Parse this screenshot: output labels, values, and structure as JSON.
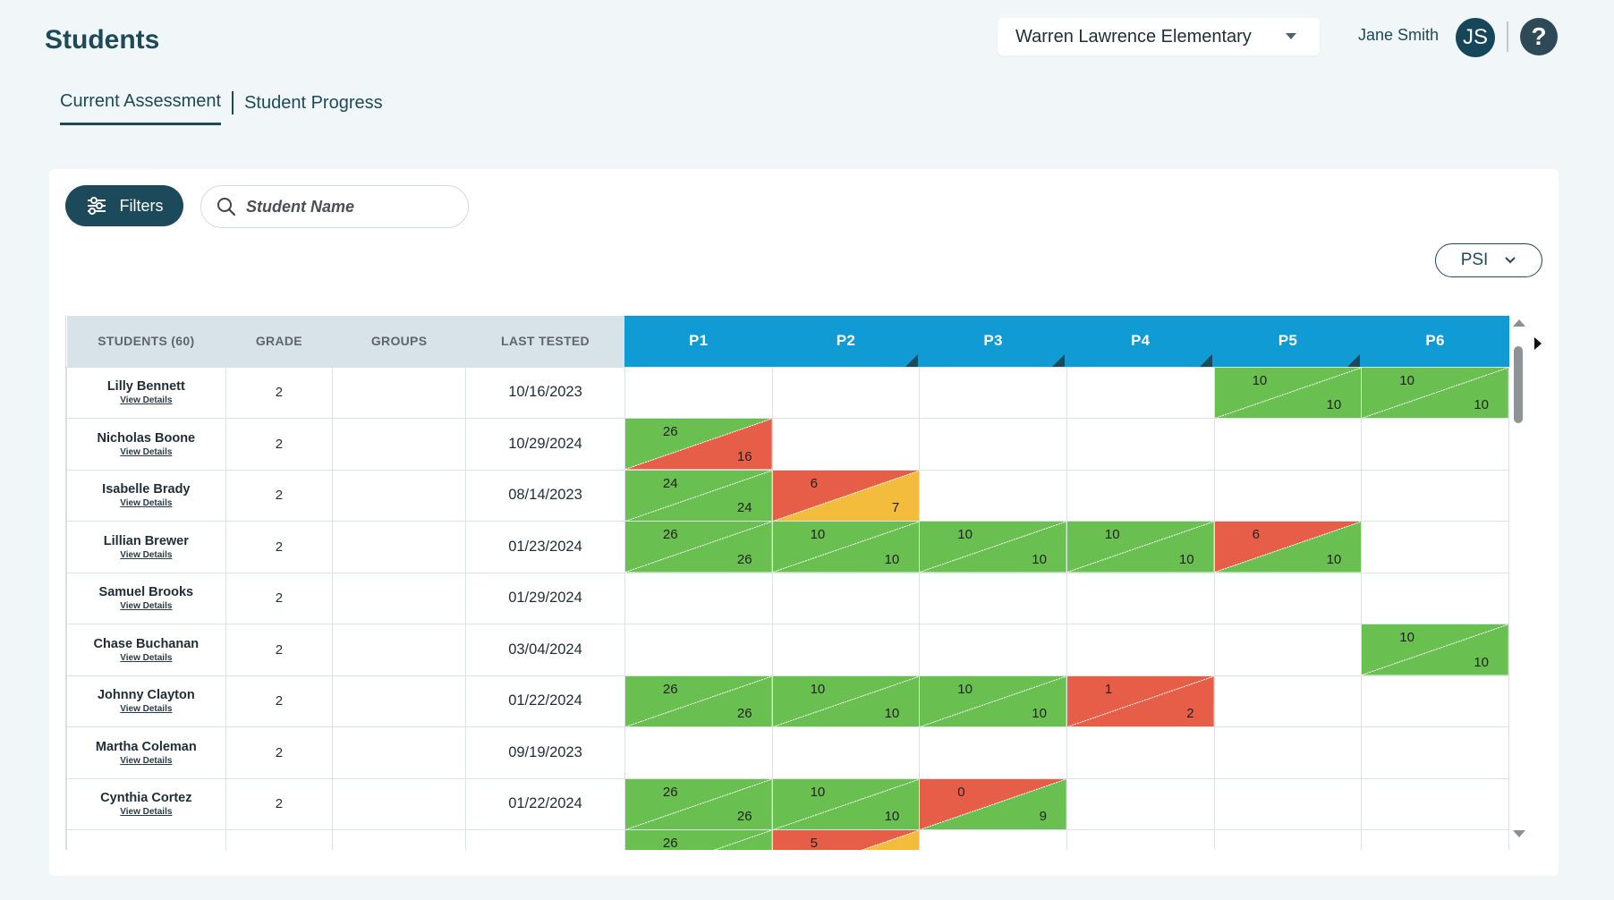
{
  "header": {
    "title": "Students",
    "school": "Warren Lawrence Elementary",
    "user_name": "Jane Smith",
    "user_initials": "JS",
    "help_icon": "?"
  },
  "tabs": [
    {
      "label": "Current Assessment",
      "active": true
    },
    {
      "label": "Student Progress",
      "active": false
    }
  ],
  "toolbar": {
    "filters_label": "Filters",
    "search_placeholder": "Student Name",
    "measure_select": "PSI"
  },
  "colors": {
    "green": "#69bf4f",
    "red": "#e65e47",
    "yellow": "#f3bc3d",
    "header_blue": "#109bd5",
    "dark_teal": "#1c4a5b"
  },
  "table": {
    "columns": [
      "STUDENTS (60)",
      "GRADE",
      "GROUPS",
      "LAST TESTED"
    ],
    "periods": [
      "P1",
      "P2",
      "P3",
      "P4",
      "P5",
      "P6"
    ],
    "view_details_label": "View Details",
    "rows": [
      {
        "name": "Lilly Bennett",
        "grade": "2",
        "groups": "",
        "last_tested": "10/16/2023",
        "scores": [
          null,
          null,
          null,
          null,
          {
            "top": "10",
            "bottom": "10",
            "upper": "green",
            "lower": "green"
          },
          {
            "top": "10",
            "bottom": "10",
            "upper": "green",
            "lower": "green"
          }
        ]
      },
      {
        "name": "Nicholas Boone",
        "grade": "2",
        "groups": "",
        "last_tested": "10/29/2024",
        "scores": [
          {
            "top": "26",
            "bottom": "16",
            "upper": "green",
            "lower": "red"
          },
          null,
          null,
          null,
          null,
          null
        ]
      },
      {
        "name": "Isabelle Brady",
        "grade": "2",
        "groups": "",
        "last_tested": "08/14/2023",
        "scores": [
          {
            "top": "24",
            "bottom": "24",
            "upper": "green",
            "lower": "green"
          },
          {
            "top": "6",
            "bottom": "7",
            "upper": "red",
            "lower": "yellow"
          },
          null,
          null,
          null,
          null
        ]
      },
      {
        "name": "Lillian Brewer",
        "grade": "2",
        "groups": "",
        "last_tested": "01/23/2024",
        "scores": [
          {
            "top": "26",
            "bottom": "26",
            "upper": "green",
            "lower": "green"
          },
          {
            "top": "10",
            "bottom": "10",
            "upper": "green",
            "lower": "green"
          },
          {
            "top": "10",
            "bottom": "10",
            "upper": "green",
            "lower": "green"
          },
          {
            "top": "10",
            "bottom": "10",
            "upper": "green",
            "lower": "green"
          },
          {
            "top": "6",
            "bottom": "10",
            "upper": "red",
            "lower": "green"
          },
          null
        ]
      },
      {
        "name": "Samuel Brooks",
        "grade": "2",
        "groups": "",
        "last_tested": "01/29/2024",
        "scores": [
          null,
          null,
          null,
          null,
          null,
          null
        ]
      },
      {
        "name": "Chase Buchanan",
        "grade": "2",
        "groups": "",
        "last_tested": "03/04/2024",
        "scores": [
          null,
          null,
          null,
          null,
          null,
          {
            "top": "10",
            "bottom": "10",
            "upper": "green",
            "lower": "green"
          }
        ]
      },
      {
        "name": "Johnny Clayton",
        "grade": "2",
        "groups": "",
        "last_tested": "01/22/2024",
        "scores": [
          {
            "top": "26",
            "bottom": "26",
            "upper": "green",
            "lower": "green"
          },
          {
            "top": "10",
            "bottom": "10",
            "upper": "green",
            "lower": "green"
          },
          {
            "top": "10",
            "bottom": "10",
            "upper": "green",
            "lower": "green"
          },
          {
            "top": "1",
            "bottom": "2",
            "upper": "red",
            "lower": "red"
          },
          null,
          null
        ]
      },
      {
        "name": "Martha Coleman",
        "grade": "2",
        "groups": "",
        "last_tested": "09/19/2023",
        "scores": [
          null,
          null,
          null,
          null,
          null,
          null
        ]
      },
      {
        "name": "Cynthia Cortez",
        "grade": "2",
        "groups": "",
        "last_tested": "01/22/2024",
        "scores": [
          {
            "top": "26",
            "bottom": "26",
            "upper": "green",
            "lower": "green"
          },
          {
            "top": "10",
            "bottom": "10",
            "upper": "green",
            "lower": "green"
          },
          {
            "top": "0",
            "bottom": "9",
            "upper": "red",
            "lower": "green"
          },
          null,
          null,
          null
        ]
      },
      {
        "name": "",
        "grade": "",
        "groups": "",
        "last_tested": "",
        "scores": [
          {
            "top": "26",
            "bottom": "",
            "upper": "green",
            "lower": "green"
          },
          {
            "top": "5",
            "bottom": "",
            "upper": "red",
            "lower": "yellow"
          },
          null,
          null,
          null,
          null
        ]
      }
    ]
  }
}
